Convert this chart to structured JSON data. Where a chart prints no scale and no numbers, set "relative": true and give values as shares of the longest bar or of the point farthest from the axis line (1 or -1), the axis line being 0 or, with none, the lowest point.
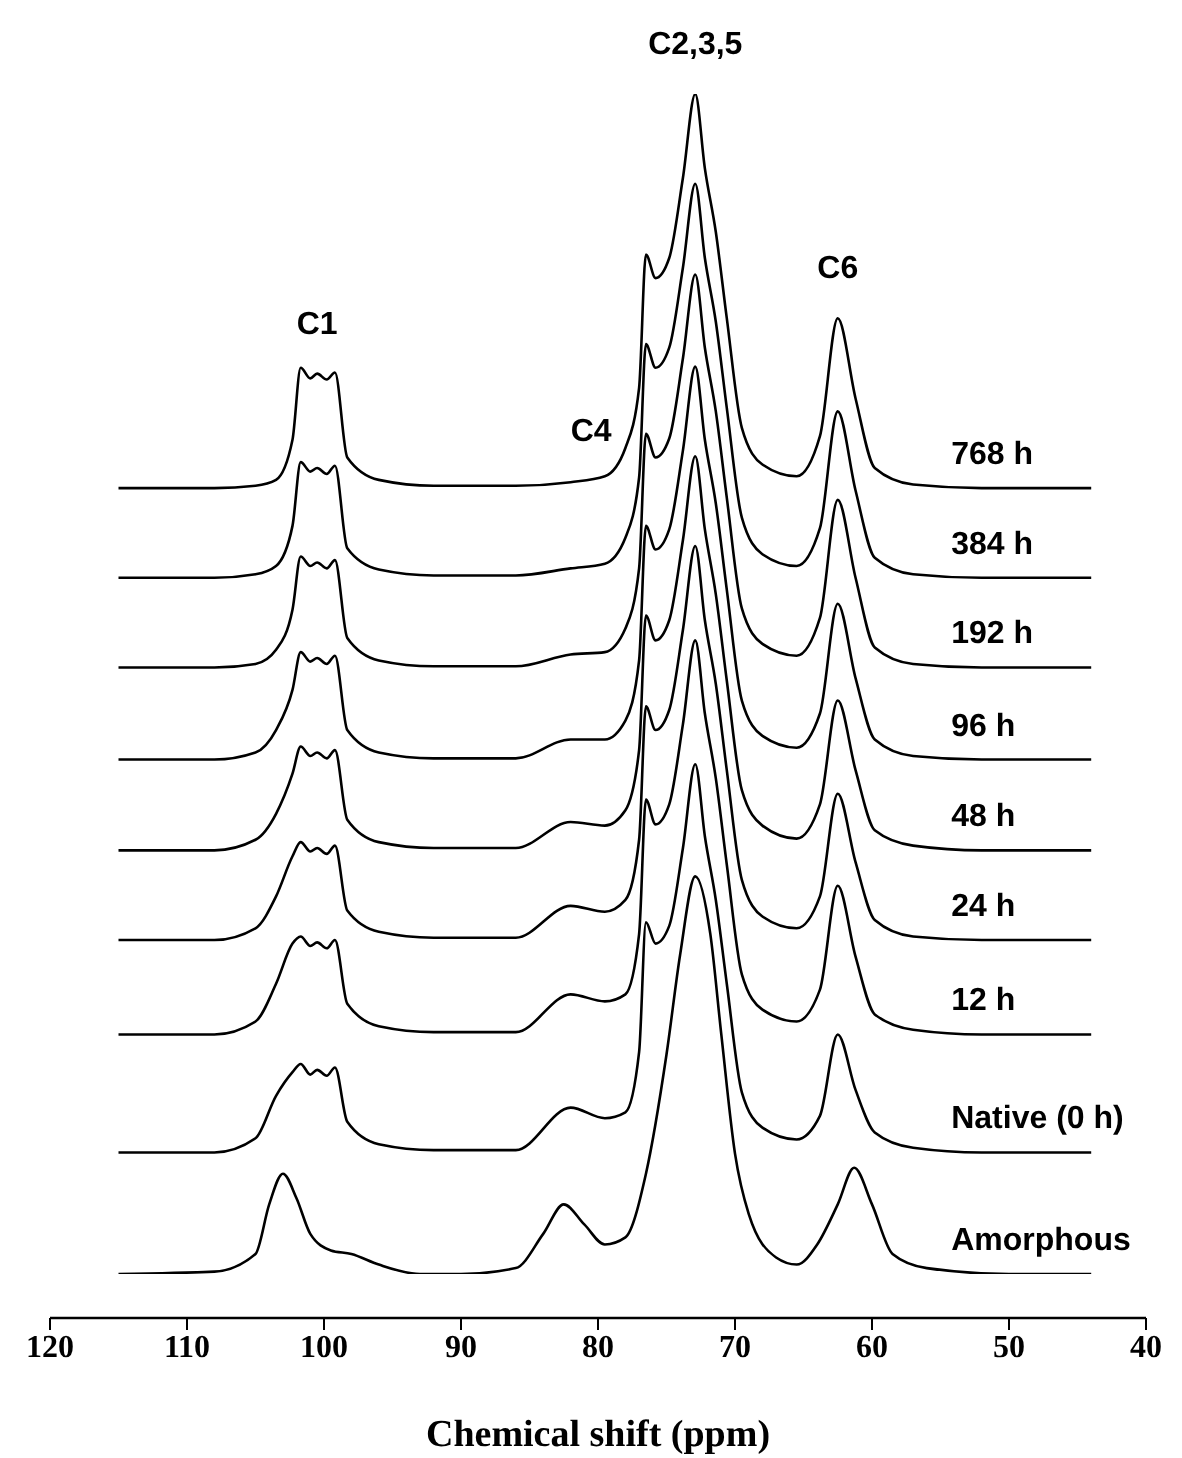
{
  "chart_data": {
    "type": "line",
    "relative": true,
    "xlabel": "Chemical shift (ppm)",
    "xlim": [
      120,
      40
    ],
    "xticks": [
      120,
      110,
      100,
      90,
      80,
      70,
      60,
      50,
      40
    ],
    "tick_labels": "x",
    "x": [
      115,
      108,
      105,
      103.5,
      102.3,
      101.7,
      101,
      100.5,
      99.8,
      99.2,
      98.3,
      96,
      92,
      86,
      82,
      79.5,
      78,
      77,
      76.5,
      75.8,
      74.8,
      73.8,
      72.9,
      72.2,
      71.4,
      70.6,
      69.5,
      68,
      65.5,
      63.8,
      62.5,
      61.2,
      59.8,
      57,
      52,
      44
    ],
    "annotations": [
      {
        "text": "C1",
        "x": 100.5,
        "y": 0.763
      },
      {
        "text": "C4",
        "x": 80.5,
        "y": 0.672
      },
      {
        "text": "C2,3,5",
        "x": 72.9,
        "y": 1
      },
      {
        "text": "C6",
        "x": 62.5,
        "y": 0.81
      }
    ],
    "series": [
      {
        "name": "768 h",
        "color": "#000000",
        "values": [
          0.666,
          0.666,
          0.668,
          0.673,
          0.707,
          0.768,
          0.759,
          0.763,
          0.758,
          0.764,
          0.692,
          0.673,
          0.668,
          0.668,
          0.671,
          0.676,
          0.7,
          0.751,
          0.864,
          0.844,
          0.861,
          0.929,
          1,
          0.937,
          0.883,
          0.81,
          0.717,
          0.686,
          0.676,
          0.71,
          0.81,
          0.742,
          0.683,
          0.669,
          0.666,
          0.666
        ]
      },
      {
        "name": "384 h",
        "color": "#000000",
        "values": [
          0.59,
          0.59,
          0.593,
          0.6,
          0.634,
          0.688,
          0.68,
          0.683,
          0.678,
          0.685,
          0.615,
          0.597,
          0.592,
          0.592,
          0.598,
          0.602,
          0.624,
          0.675,
          0.788,
          0.768,
          0.785,
          0.853,
          0.924,
          0.861,
          0.807,
          0.734,
          0.641,
          0.61,
          0.6,
          0.632,
          0.731,
          0.664,
          0.607,
          0.593,
          0.59,
          0.59
        ]
      },
      {
        "name": "192 h",
        "color": "#000000",
        "values": [
          0.514,
          0.514,
          0.517,
          0.529,
          0.563,
          0.608,
          0.6,
          0.603,
          0.598,
          0.605,
          0.539,
          0.52,
          0.515,
          0.515,
          0.525,
          0.527,
          0.547,
          0.598,
          0.712,
          0.692,
          0.708,
          0.776,
          0.847,
          0.785,
          0.731,
          0.658,
          0.564,
          0.534,
          0.524,
          0.556,
          0.656,
          0.59,
          0.531,
          0.517,
          0.514,
          0.514
        ]
      },
      {
        "name": "96 h",
        "color": "#000000",
        "values": [
          0.436,
          0.436,
          0.442,
          0.461,
          0.495,
          0.527,
          0.519,
          0.522,
          0.517,
          0.524,
          0.461,
          0.442,
          0.437,
          0.437,
          0.453,
          0.453,
          0.469,
          0.52,
          0.634,
          0.614,
          0.631,
          0.698,
          0.769,
          0.707,
          0.653,
          0.58,
          0.486,
          0.456,
          0.446,
          0.475,
          0.568,
          0.505,
          0.453,
          0.439,
          0.436,
          0.436
        ]
      },
      {
        "name": "48 h",
        "color": "#000000",
        "values": [
          0.359,
          0.359,
          0.368,
          0.39,
          0.424,
          0.447,
          0.439,
          0.442,
          0.437,
          0.444,
          0.385,
          0.366,
          0.361,
          0.361,
          0.383,
          0.38,
          0.393,
          0.444,
          0.558,
          0.537,
          0.554,
          0.622,
          0.693,
          0.631,
          0.576,
          0.503,
          0.41,
          0.38,
          0.369,
          0.398,
          0.486,
          0.427,
          0.376,
          0.363,
          0.359,
          0.359
        ]
      },
      {
        "name": "24 h",
        "color": "#000000",
        "values": [
          0.283,
          0.283,
          0.293,
          0.32,
          0.354,
          0.366,
          0.358,
          0.361,
          0.356,
          0.363,
          0.308,
          0.29,
          0.285,
          0.285,
          0.312,
          0.307,
          0.317,
          0.368,
          0.481,
          0.461,
          0.478,
          0.546,
          0.617,
          0.554,
          0.5,
          0.427,
          0.334,
          0.303,
          0.293,
          0.32,
          0.407,
          0.349,
          0.3,
          0.286,
          0.283,
          0.283
        ]
      },
      {
        "name": "12 h",
        "color": "#000000",
        "values": [
          0.203,
          0.203,
          0.214,
          0.246,
          0.28,
          0.286,
          0.278,
          0.281,
          0.276,
          0.283,
          0.229,
          0.21,
          0.205,
          0.205,
          0.237,
          0.231,
          0.237,
          0.288,
          0.402,
          0.381,
          0.398,
          0.466,
          0.537,
          0.475,
          0.42,
          0.347,
          0.254,
          0.224,
          0.214,
          0.241,
          0.329,
          0.269,
          0.22,
          0.207,
          0.203,
          0.203
        ]
      },
      {
        "name": "Native (0 h)",
        "color": "#000000",
        "values": [
          0.103,
          0.103,
          0.115,
          0.151,
          0.171,
          0.178,
          0.169,
          0.173,
          0.168,
          0.175,
          0.129,
          0.11,
          0.105,
          0.105,
          0.141,
          0.132,
          0.137,
          0.188,
          0.298,
          0.28,
          0.295,
          0.361,
          0.432,
          0.371,
          0.317,
          0.246,
          0.154,
          0.124,
          0.114,
          0.134,
          0.203,
          0.156,
          0.12,
          0.107,
          0.103,
          0.103
        ]
      },
      {
        "name": "Amorphous",
        "color": "#000000",
        "x": [
          115,
          108,
          105,
          104,
          103,
          102,
          101,
          99.5,
          98,
          96,
          93,
          90,
          86,
          84,
          82.5,
          81,
          79.5,
          78,
          76.5,
          75,
          74,
          72.9,
          71.8,
          71,
          70,
          69,
          67,
          65.5,
          64,
          62.5,
          61.3,
          60,
          58.5,
          56,
          50,
          44
        ],
        "values": [
          0,
          0.002,
          0.017,
          0.059,
          0.085,
          0.064,
          0.034,
          0.02,
          0.017,
          0.008,
          0,
          0,
          0.005,
          0.034,
          0.059,
          0.042,
          0.025,
          0.031,
          0.085,
          0.186,
          0.271,
          0.337,
          0.288,
          0.203,
          0.102,
          0.051,
          0.014,
          0.008,
          0.025,
          0.059,
          0.09,
          0.059,
          0.017,
          0.005,
          0,
          0
        ]
      }
    ]
  }
}
